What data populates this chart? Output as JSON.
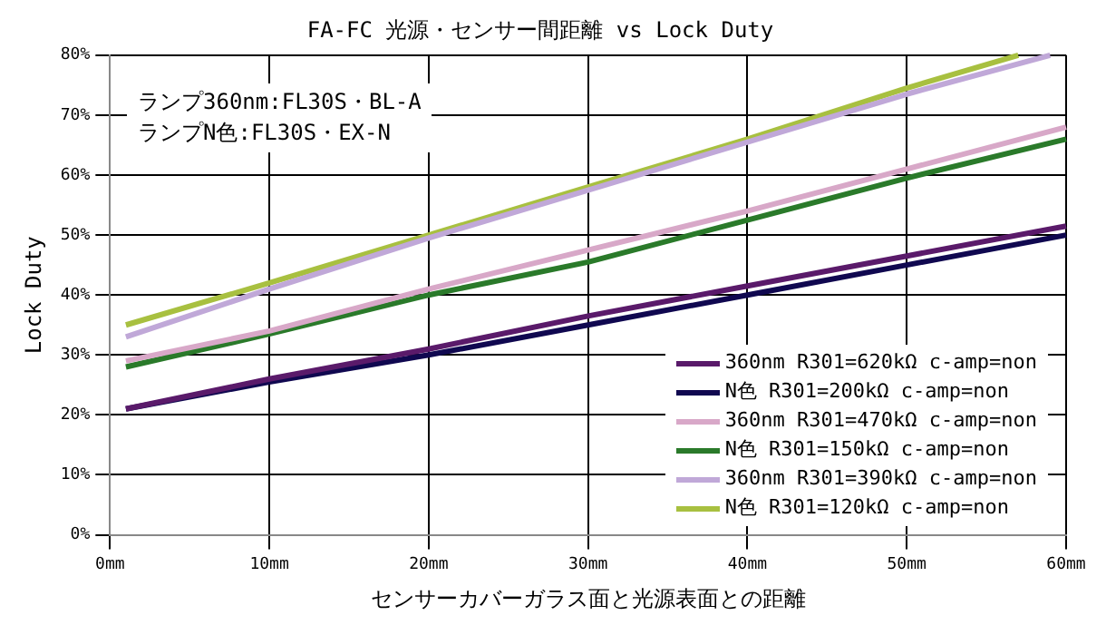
{
  "chart_data": {
    "type": "line",
    "title": "FA-FC 光源・センサー間距離 vs Lock Duty",
    "xlabel": "センサーカバーガラス面と光源表面との距離",
    "ylabel": "Lock Duty",
    "annotations": [
      "ランプ360nm:FL30S・BL-A",
      "ランプN色:FL30S・EX-N"
    ],
    "x": [
      1,
      10,
      20,
      30,
      40,
      50,
      60
    ],
    "series": [
      {
        "name": "360nm R301=620kΩ c-amp=non",
        "color": "#5a1a6a",
        "values": [
          21,
          26,
          31,
          36.5,
          41.5,
          46.5,
          51.5
        ]
      },
      {
        "name": "N色 R301=200kΩ c-amp=non",
        "color": "#100850",
        "values": [
          21,
          25.5,
          30,
          35,
          40,
          45,
          50
        ]
      },
      {
        "name": "360nm R301=470kΩ c-amp=non",
        "color": "#d8a8c8",
        "values": [
          29,
          34,
          41,
          47.5,
          54,
          61,
          68
        ]
      },
      {
        "name": "N色 R301=150kΩ c-amp=non",
        "color": "#2a7a2a",
        "values": [
          28,
          33.5,
          40,
          45.5,
          52.5,
          59.5,
          66
        ]
      },
      {
        "name": "360nm R301=390kΩ c-amp=non",
        "color": "#c0a8d8",
        "x": [
          1,
          10,
          20,
          30,
          40,
          50,
          59
        ],
        "values": [
          33,
          41,
          49.5,
          57.5,
          65.5,
          73.5,
          80
        ]
      },
      {
        "name": "N色 R301=120kΩ c-amp=non",
        "color": "#a8c040",
        "x": [
          1,
          10,
          20,
          30,
          40,
          50,
          57
        ],
        "values": [
          35,
          42,
          50,
          58,
          66,
          74.5,
          80
        ]
      }
    ],
    "xlim": [
      0,
      60
    ],
    "xticks": [
      {
        "value": 0,
        "label": "0mm"
      },
      {
        "value": 10,
        "label": "10mm"
      },
      {
        "value": 20,
        "label": "20mm"
      },
      {
        "value": 30,
        "label": "30mm"
      },
      {
        "value": 40,
        "label": "40mm"
      },
      {
        "value": 50,
        "label": "50mm"
      },
      {
        "value": 60,
        "label": "60mm"
      }
    ],
    "ylim": [
      0,
      80
    ],
    "yticks": [
      {
        "value": 0,
        "label": "0%"
      },
      {
        "value": 10,
        "label": "10%"
      },
      {
        "value": 20,
        "label": "20%"
      },
      {
        "value": 30,
        "label": "30%"
      },
      {
        "value": 40,
        "label": "40%"
      },
      {
        "value": 50,
        "label": "50%"
      },
      {
        "value": 60,
        "label": "60%"
      },
      {
        "value": 70,
        "label": "70%"
      },
      {
        "value": 80,
        "label": "80%"
      }
    ],
    "grid": true,
    "legend": "bottom right",
    "marker": "none",
    "line_style": "solid"
  }
}
